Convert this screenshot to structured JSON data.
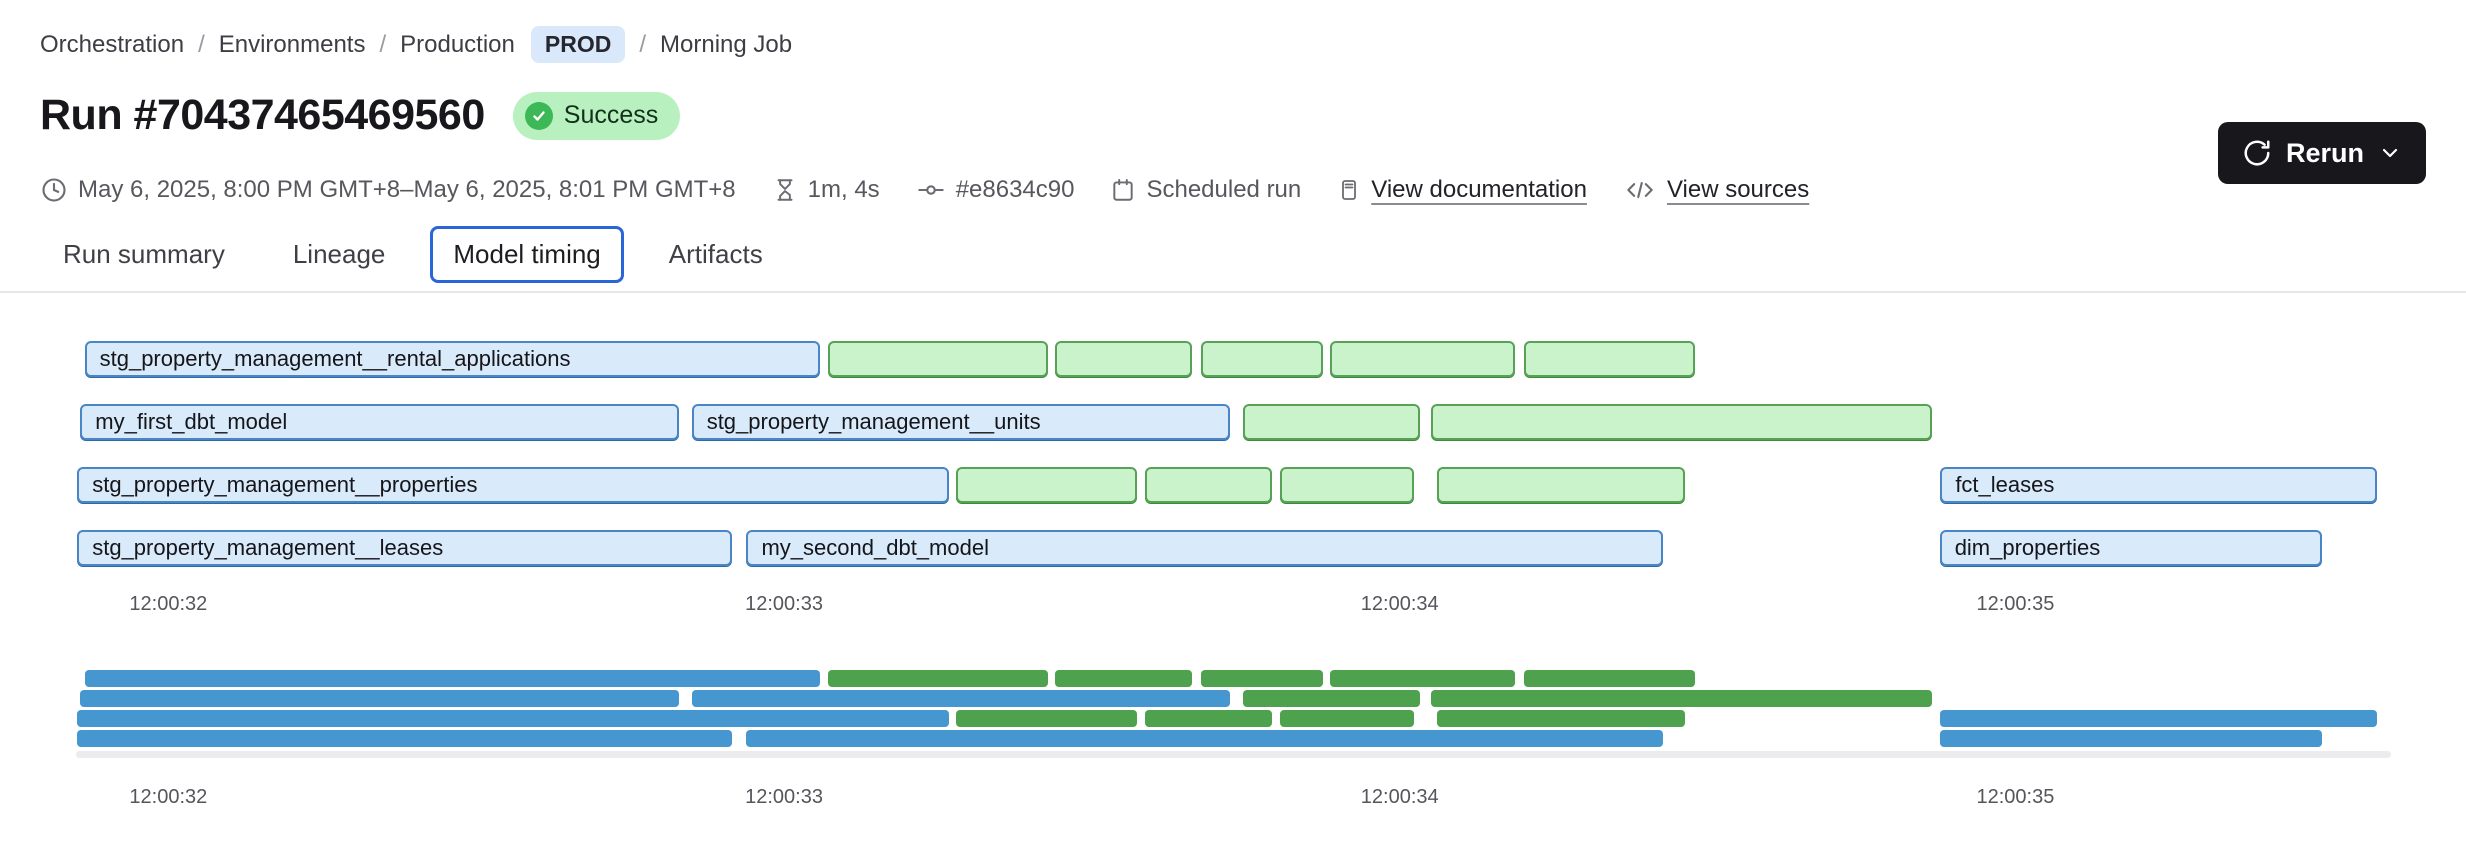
{
  "breadcrumb": {
    "separator": "/",
    "items": [
      {
        "label": "Orchestration"
      },
      {
        "label": "Environments"
      },
      {
        "label": "Production",
        "badge": "PROD"
      },
      {
        "label": "Morning Job"
      }
    ]
  },
  "header": {
    "title": "Run #70437465469560",
    "status": "Success",
    "rerun_label": "Rerun"
  },
  "meta": {
    "time_range": "May 6, 2025, 8:00 PM GMT+8–May 6, 2025, 8:01 PM GMT+8",
    "duration": "1m, 4s",
    "commit": "#e8634c90",
    "trigger": "Scheduled run",
    "docs_link": "View documentation",
    "sources_link": "View sources"
  },
  "tabs": [
    {
      "label": "Run summary",
      "active": false
    },
    {
      "label": "Lineage",
      "active": false
    },
    {
      "label": "Model timing",
      "active": true
    },
    {
      "label": "Artifacts",
      "active": false
    }
  ],
  "chart_data": {
    "type": "gantt",
    "title": "Model timing",
    "time_axis": {
      "domain_s": [
        31.85,
        35.61
      ],
      "ticks": [
        {
          "s": 32,
          "label": "12:00:32"
        },
        {
          "s": 33,
          "label": "12:00:33"
        },
        {
          "s": 34,
          "label": "12:00:34"
        },
        {
          "s": 35,
          "label": "12:00:35"
        }
      ]
    },
    "colors": {
      "blue_fill": "#d9eafb",
      "blue_border": "#4a86c5",
      "green_fill": "#cbf3cb",
      "green_border": "#57a257",
      "minimap_blue": "#4697d0",
      "minimap_green": "#4ea24e"
    },
    "rows": [
      {
        "bars": [
          {
            "label": "stg_property_management__rental_applications",
            "color": "blue",
            "start_s": 31.864,
            "end_s": 33.059
          },
          {
            "label": "",
            "color": "green",
            "start_s": 33.072,
            "end_s": 33.429
          },
          {
            "label": "",
            "color": "green",
            "start_s": 33.44,
            "end_s": 33.662
          },
          {
            "label": "",
            "color": "green",
            "start_s": 33.677,
            "end_s": 33.876
          },
          {
            "label": "",
            "color": "green",
            "start_s": 33.887,
            "end_s": 34.187
          },
          {
            "label": "",
            "color": "green",
            "start_s": 34.202,
            "end_s": 34.479
          }
        ]
      },
      {
        "bars": [
          {
            "label": "my_first_dbt_model",
            "color": "blue",
            "start_s": 31.857,
            "end_s": 32.83
          },
          {
            "label": "stg_property_management__units",
            "color": "blue",
            "start_s": 32.85,
            "end_s": 33.725
          },
          {
            "label": "",
            "color": "green",
            "start_s": 33.745,
            "end_s": 34.033
          },
          {
            "label": "",
            "color": "green",
            "start_s": 34.05,
            "end_s": 34.865
          }
        ]
      },
      {
        "bars": [
          {
            "label": "stg_property_management__properties",
            "color": "blue",
            "start_s": 31.852,
            "end_s": 33.268
          },
          {
            "label": "",
            "color": "green",
            "start_s": 33.279,
            "end_s": 33.573
          },
          {
            "label": "",
            "color": "green",
            "start_s": 33.586,
            "end_s": 33.792
          },
          {
            "label": "",
            "color": "green",
            "start_s": 33.805,
            "end_s": 34.024
          },
          {
            "label": "",
            "color": "green",
            "start_s": 34.061,
            "end_s": 34.463
          },
          {
            "label": "fct_leases",
            "color": "blue",
            "start_s": 34.878,
            "end_s": 35.587
          }
        ]
      },
      {
        "bars": [
          {
            "label": "stg_property_management__leases",
            "color": "blue",
            "start_s": 31.852,
            "end_s": 32.915
          },
          {
            "label": "my_second_dbt_model",
            "color": "blue",
            "start_s": 32.939,
            "end_s": 34.428
          },
          {
            "label": "dim_properties",
            "color": "blue",
            "start_s": 34.877,
            "end_s": 35.498
          }
        ]
      }
    ]
  }
}
